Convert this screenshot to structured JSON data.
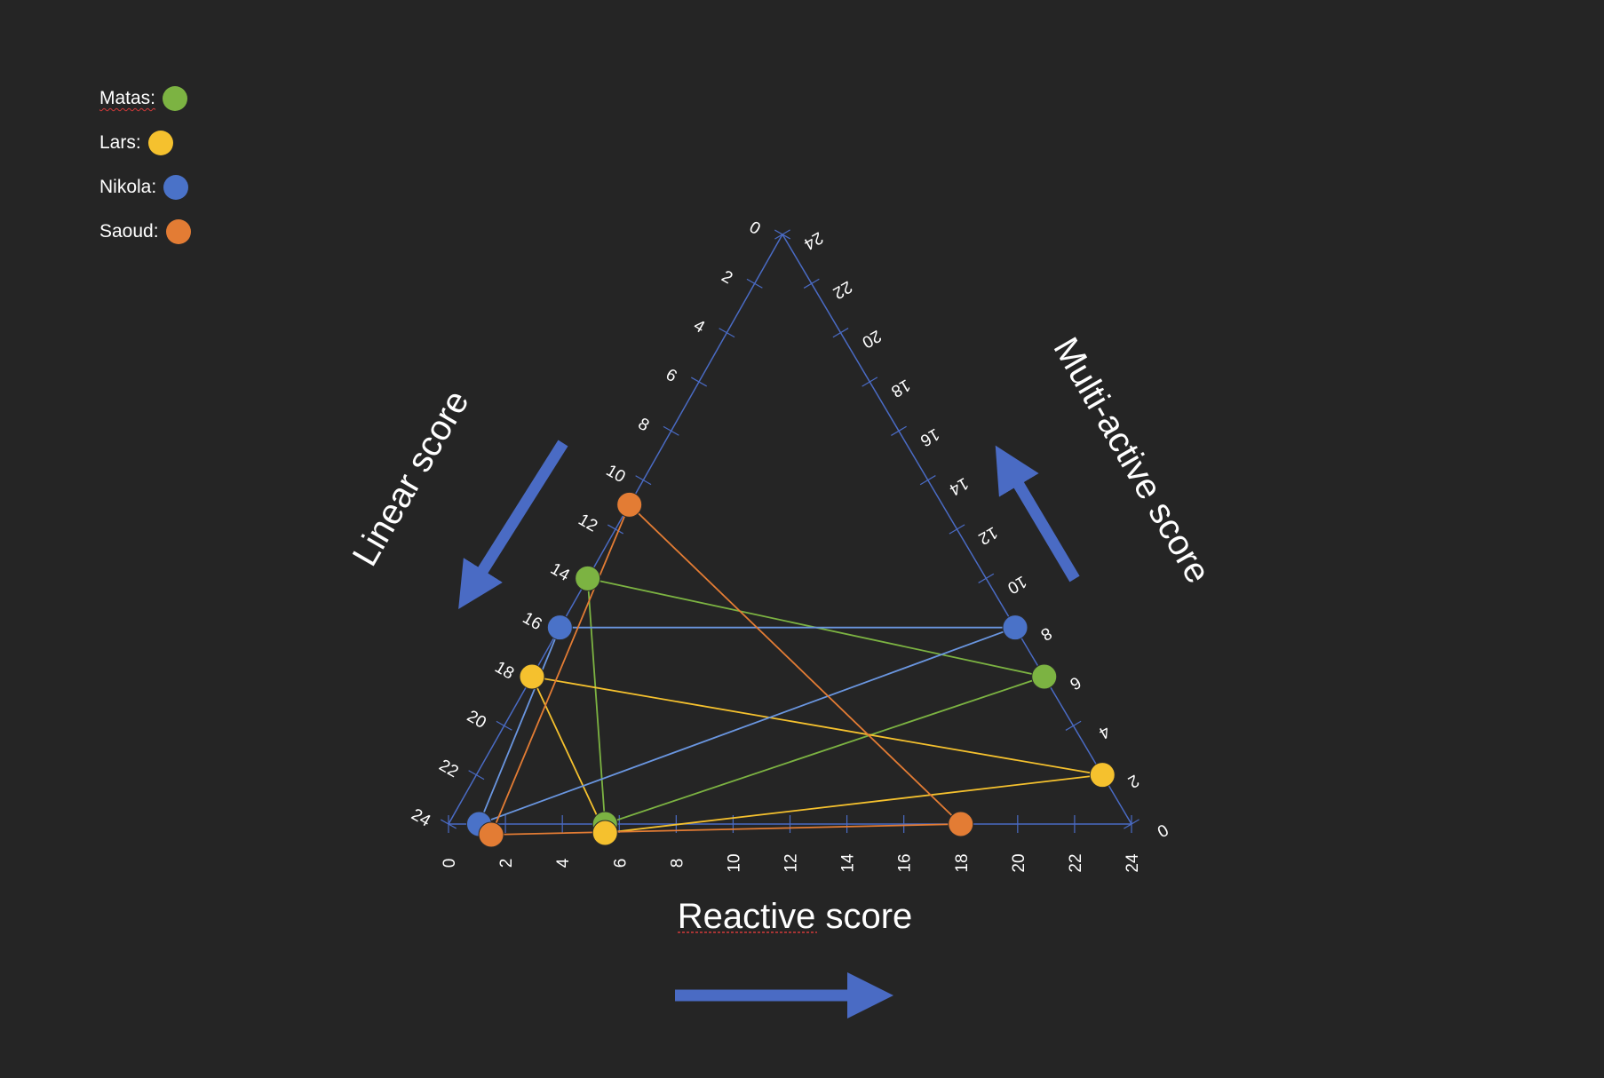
{
  "legend": [
    {
      "name": "Matas",
      "label": "Matas:",
      "color": "#7cb342"
    },
    {
      "name": "Lars",
      "label": "Lars:",
      "color": "#f5c12e"
    },
    {
      "name": "Nikola",
      "label": "Nikola:",
      "color": "#4a72c8"
    },
    {
      "name": "Saoud",
      "label": "Saoud:",
      "color": "#e37c34"
    }
  ],
  "axis_titles": {
    "bottom": "Reactive score",
    "left": "Linear score",
    "right": "Multi-active score"
  },
  "colors": {
    "background": "#252525",
    "axis": "#4a6bc4",
    "arrow": "#4a6bc4",
    "Matas_line": "#7cb342",
    "Lars_line": "#f5c12e",
    "Nikola_line": "#6a96e0",
    "Saoud_line": "#e37c34"
  },
  "chart_data": {
    "type": "scatter",
    "subtype": "ternary",
    "axes": {
      "reactive": {
        "title": "Reactive score",
        "range": [
          0,
          24
        ],
        "ticks": [
          0,
          2,
          4,
          6,
          8,
          10,
          12,
          14,
          16,
          18,
          20,
          22,
          24
        ]
      },
      "linear": {
        "title": "Linear score",
        "range": [
          0,
          24
        ],
        "ticks": [
          0,
          2,
          4,
          6,
          8,
          10,
          12,
          14,
          16,
          18,
          20,
          22,
          24
        ]
      },
      "multi_active": {
        "title": "Multi-active score",
        "range": [
          0,
          24
        ],
        "ticks": [
          0,
          2,
          4,
          6,
          8,
          10,
          12,
          14,
          16,
          18,
          20,
          22,
          24
        ]
      }
    },
    "series": [
      {
        "name": "Matas",
        "color": "#7cb342",
        "points": [
          {
            "reactive": 5.5,
            "linear": 14,
            "multi_active": 0
          },
          {
            "reactive": 5.5,
            "linear": 0,
            "multi_active": 0
          },
          {
            "reactive": 21,
            "linear": 0,
            "multi_active": 6
          }
        ]
      },
      {
        "name": "Lars",
        "color": "#f5c12e",
        "points": [
          {
            "reactive": 3.5,
            "linear": 18,
            "multi_active": 0
          },
          {
            "reactive": 5.5,
            "linear": 0,
            "multi_active": 0
          },
          {
            "reactive": 23.5,
            "linear": 0,
            "multi_active": 2
          }
        ]
      },
      {
        "name": "Nikola",
        "color": "#4a72c8",
        "points": [
          {
            "reactive": 4.5,
            "linear": 16,
            "multi_active": 0
          },
          {
            "reactive": 1.2,
            "linear": 0,
            "multi_active": 0
          },
          {
            "reactive": 20.5,
            "linear": 0,
            "multi_active": 8
          }
        ]
      },
      {
        "name": "Saoud",
        "color": "#e37c34",
        "points": [
          {
            "reactive": 6.5,
            "linear": 11,
            "multi_active": 0
          },
          {
            "reactive": 1.5,
            "linear": 0,
            "multi_active": 0
          },
          {
            "reactive": 18,
            "linear": 0,
            "multi_active": 12
          }
        ]
      }
    ],
    "grid": false,
    "legend_placement": "top-left"
  }
}
